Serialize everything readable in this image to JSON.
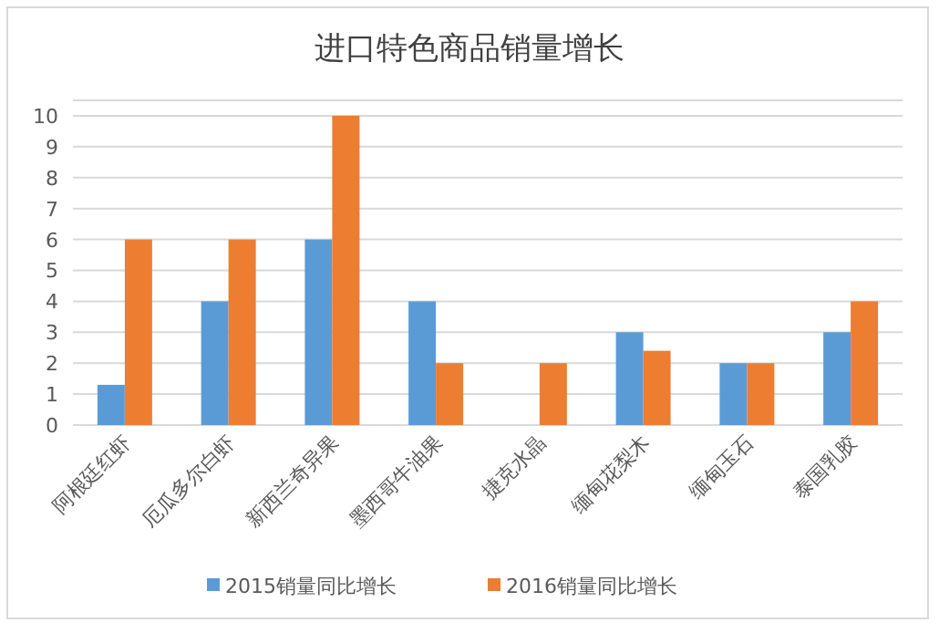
{
  "chart_data": {
    "type": "bar",
    "title": "进口特色商品销量增长",
    "categories": [
      "阿根廷红虾",
      "厄瓜多尔白虾",
      "新西兰奇异果",
      "墨西哥牛油果",
      "捷克水晶",
      "缅甸花梨木",
      "缅甸玉石",
      "泰国乳胶"
    ],
    "series": [
      {
        "name": "2015销量同比增长",
        "color": "#5b9bd5",
        "values": [
          1.3,
          4,
          6,
          4,
          null,
          3,
          2,
          3
        ]
      },
      {
        "name": "2016销量同比增长",
        "color": "#ed7d31",
        "values": [
          6,
          6,
          10,
          2,
          2,
          2.4,
          2,
          4
        ]
      }
    ],
    "ylim": [
      0,
      10.5
    ],
    "yticks": [
      0,
      1,
      2,
      3,
      4,
      5,
      6,
      7,
      8,
      9,
      10
    ],
    "grid": "y",
    "legend": "bottom"
  }
}
